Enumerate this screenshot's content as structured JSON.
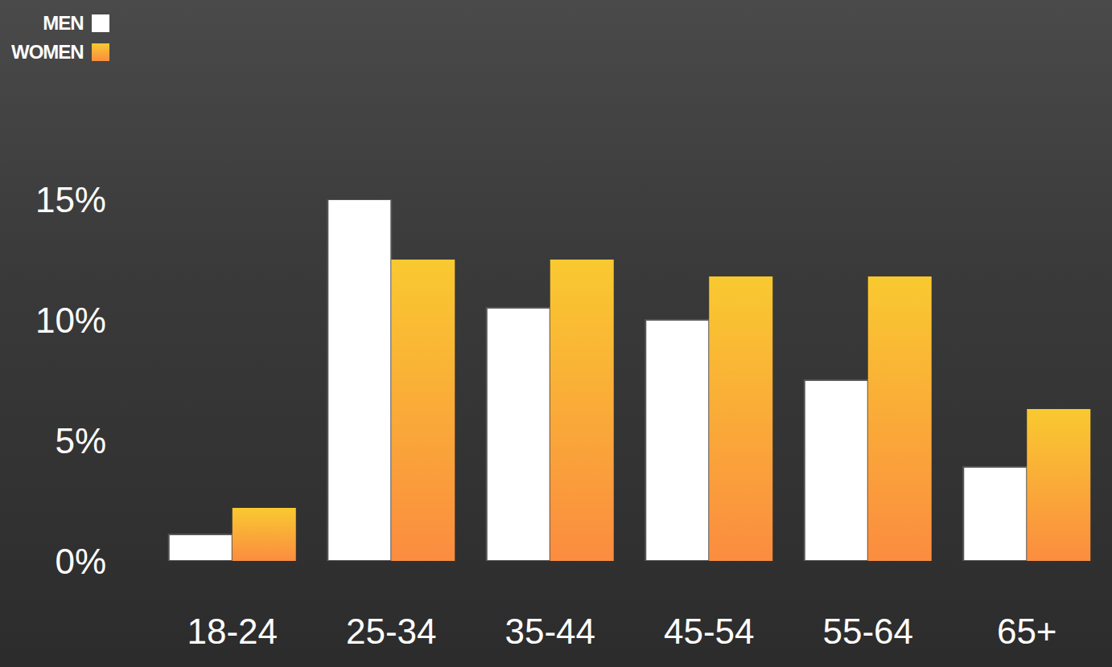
{
  "chart_data": {
    "type": "bar",
    "categories": [
      "18-24",
      "25-34",
      "35-44",
      "45-54",
      "55-64",
      "65+"
    ],
    "series": [
      {
        "name": "MEN",
        "color": "#ffffff",
        "values": [
          1.1,
          15,
          10.5,
          10,
          7.5,
          3.9
        ]
      },
      {
        "name": "WOMEN",
        "color": "#f9c930",
        "values": [
          2.2,
          12.5,
          12.5,
          11.8,
          11.8,
          6.3
        ]
      }
    ],
    "ylim": [
      0,
      15
    ],
    "yticks": [
      {
        "value": 0,
        "label": "0%"
      },
      {
        "value": 5,
        "label": "5%"
      },
      {
        "value": 10,
        "label": "10%"
      },
      {
        "value": 15,
        "label": "15%"
      }
    ],
    "grid": false,
    "legend": "upper left"
  }
}
